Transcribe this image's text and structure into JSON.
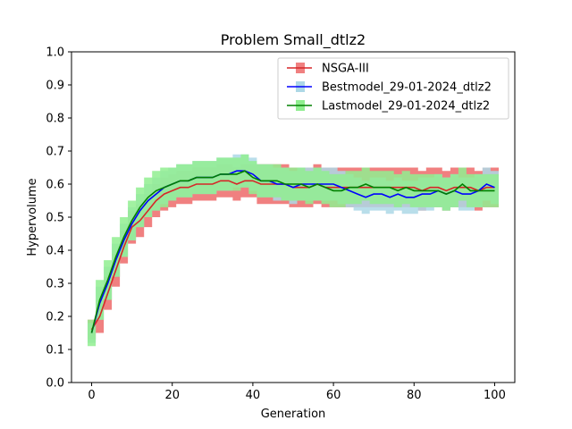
{
  "chart_data": {
    "type": "line",
    "title": "Problem Small_dtlz2",
    "xlabel": "Generation",
    "ylabel": "Hypervolume",
    "xlim": [
      -5,
      105
    ],
    "ylim": [
      0.0,
      1.0
    ],
    "xticks": [
      0,
      20,
      40,
      60,
      80,
      100
    ],
    "yticks": [
      0.0,
      0.1,
      0.2,
      0.3,
      0.4,
      0.5,
      0.6,
      0.7,
      0.8,
      0.9,
      1.0
    ],
    "ytick_labels": [
      "0.0",
      "0.1",
      "0.2",
      "0.3",
      "0.4",
      "0.5",
      "0.6",
      "0.7",
      "0.8",
      "0.9",
      "1.0"
    ],
    "legend_position": "upper-right",
    "series": [
      {
        "name": "NSGA-III",
        "color": "#d62728",
        "band_color": "#f08080",
        "x": [
          0,
          2,
          4,
          6,
          8,
          10,
          12,
          14,
          16,
          18,
          20,
          22,
          24,
          26,
          28,
          30,
          32,
          34,
          36,
          38,
          40,
          42,
          44,
          46,
          48,
          50,
          52,
          54,
          56,
          58,
          60,
          62,
          64,
          66,
          68,
          70,
          72,
          74,
          76,
          78,
          80,
          82,
          84,
          86,
          88,
          90,
          92,
          94,
          96,
          98,
          100
        ],
        "values": [
          0.16,
          0.2,
          0.27,
          0.34,
          0.41,
          0.47,
          0.49,
          0.52,
          0.55,
          0.57,
          0.58,
          0.59,
          0.59,
          0.6,
          0.6,
          0.6,
          0.61,
          0.61,
          0.6,
          0.61,
          0.61,
          0.6,
          0.6,
          0.6,
          0.6,
          0.59,
          0.59,
          0.59,
          0.6,
          0.59,
          0.59,
          0.59,
          0.59,
          0.59,
          0.59,
          0.59,
          0.59,
          0.59,
          0.59,
          0.59,
          0.59,
          0.58,
          0.59,
          0.59,
          0.58,
          0.59,
          0.59,
          0.59,
          0.58,
          0.59,
          0.59
        ],
        "spread": [
          0.03,
          0.05,
          0.05,
          0.05,
          0.05,
          0.05,
          0.05,
          0.05,
          0.05,
          0.05,
          0.05,
          0.05,
          0.05,
          0.05,
          0.05,
          0.05,
          0.05,
          0.05,
          0.05,
          0.05,
          0.05,
          0.06,
          0.06,
          0.06,
          0.06,
          0.06,
          0.06,
          0.06,
          0.06,
          0.06,
          0.06,
          0.06,
          0.06,
          0.06,
          0.06,
          0.06,
          0.06,
          0.06,
          0.06,
          0.06,
          0.06,
          0.06,
          0.06,
          0.06,
          0.06,
          0.06,
          0.06,
          0.06,
          0.06,
          0.06,
          0.06
        ]
      },
      {
        "name": "Bestmodel_29-01-2024_dtlz2",
        "color": "#0000ff",
        "band_color": "#add8e6",
        "x": [
          0,
          2,
          4,
          6,
          8,
          10,
          12,
          14,
          16,
          18,
          20,
          22,
          24,
          26,
          28,
          30,
          32,
          34,
          36,
          38,
          40,
          42,
          44,
          46,
          48,
          50,
          52,
          54,
          56,
          58,
          60,
          62,
          64,
          66,
          68,
          70,
          72,
          74,
          76,
          78,
          80,
          82,
          84,
          86,
          88,
          90,
          92,
          94,
          96,
          98,
          100
        ],
        "values": [
          0.15,
          0.24,
          0.3,
          0.37,
          0.43,
          0.48,
          0.52,
          0.55,
          0.57,
          0.59,
          0.6,
          0.61,
          0.61,
          0.62,
          0.62,
          0.62,
          0.63,
          0.63,
          0.64,
          0.64,
          0.63,
          0.61,
          0.61,
          0.6,
          0.6,
          0.59,
          0.6,
          0.6,
          0.6,
          0.6,
          0.6,
          0.59,
          0.58,
          0.57,
          0.56,
          0.57,
          0.57,
          0.56,
          0.57,
          0.56,
          0.56,
          0.57,
          0.57,
          0.58,
          0.57,
          0.58,
          0.57,
          0.57,
          0.58,
          0.6,
          0.59
        ],
        "spread": [
          0.03,
          0.05,
          0.05,
          0.05,
          0.05,
          0.05,
          0.05,
          0.05,
          0.05,
          0.05,
          0.05,
          0.05,
          0.05,
          0.05,
          0.05,
          0.05,
          0.05,
          0.05,
          0.05,
          0.05,
          0.05,
          0.05,
          0.05,
          0.05,
          0.05,
          0.05,
          0.05,
          0.05,
          0.05,
          0.05,
          0.05,
          0.05,
          0.05,
          0.05,
          0.05,
          0.05,
          0.05,
          0.05,
          0.05,
          0.05,
          0.05,
          0.05,
          0.05,
          0.05,
          0.05,
          0.05,
          0.05,
          0.05,
          0.05,
          0.05,
          0.05
        ]
      },
      {
        "name": "Lastmodel_29-01-2024_dtlz2",
        "color": "#008000",
        "band_color": "#90ee90",
        "x": [
          0,
          2,
          4,
          6,
          8,
          10,
          12,
          14,
          16,
          18,
          20,
          22,
          24,
          26,
          28,
          30,
          32,
          34,
          36,
          38,
          40,
          42,
          44,
          46,
          48,
          50,
          52,
          54,
          56,
          58,
          60,
          62,
          64,
          66,
          68,
          70,
          72,
          74,
          76,
          78,
          80,
          82,
          84,
          86,
          88,
          90,
          92,
          94,
          96,
          98,
          100
        ],
        "values": [
          0.15,
          0.25,
          0.31,
          0.38,
          0.44,
          0.49,
          0.53,
          0.56,
          0.58,
          0.59,
          0.6,
          0.61,
          0.61,
          0.62,
          0.62,
          0.62,
          0.63,
          0.63,
          0.63,
          0.64,
          0.62,
          0.61,
          0.61,
          0.61,
          0.6,
          0.6,
          0.6,
          0.59,
          0.6,
          0.59,
          0.58,
          0.58,
          0.59,
          0.59,
          0.6,
          0.59,
          0.59,
          0.59,
          0.58,
          0.59,
          0.58,
          0.58,
          0.58,
          0.58,
          0.57,
          0.58,
          0.6,
          0.58,
          0.58,
          0.58,
          0.58
        ],
        "spread": [
          0.04,
          0.06,
          0.06,
          0.06,
          0.06,
          0.06,
          0.06,
          0.06,
          0.06,
          0.06,
          0.05,
          0.05,
          0.05,
          0.05,
          0.05,
          0.05,
          0.05,
          0.05,
          0.05,
          0.05,
          0.05,
          0.05,
          0.05,
          0.05,
          0.05,
          0.05,
          0.05,
          0.05,
          0.05,
          0.05,
          0.05,
          0.05,
          0.05,
          0.05,
          0.05,
          0.05,
          0.05,
          0.05,
          0.05,
          0.05,
          0.05,
          0.05,
          0.05,
          0.05,
          0.05,
          0.05,
          0.05,
          0.05,
          0.05,
          0.05,
          0.05
        ]
      }
    ]
  }
}
